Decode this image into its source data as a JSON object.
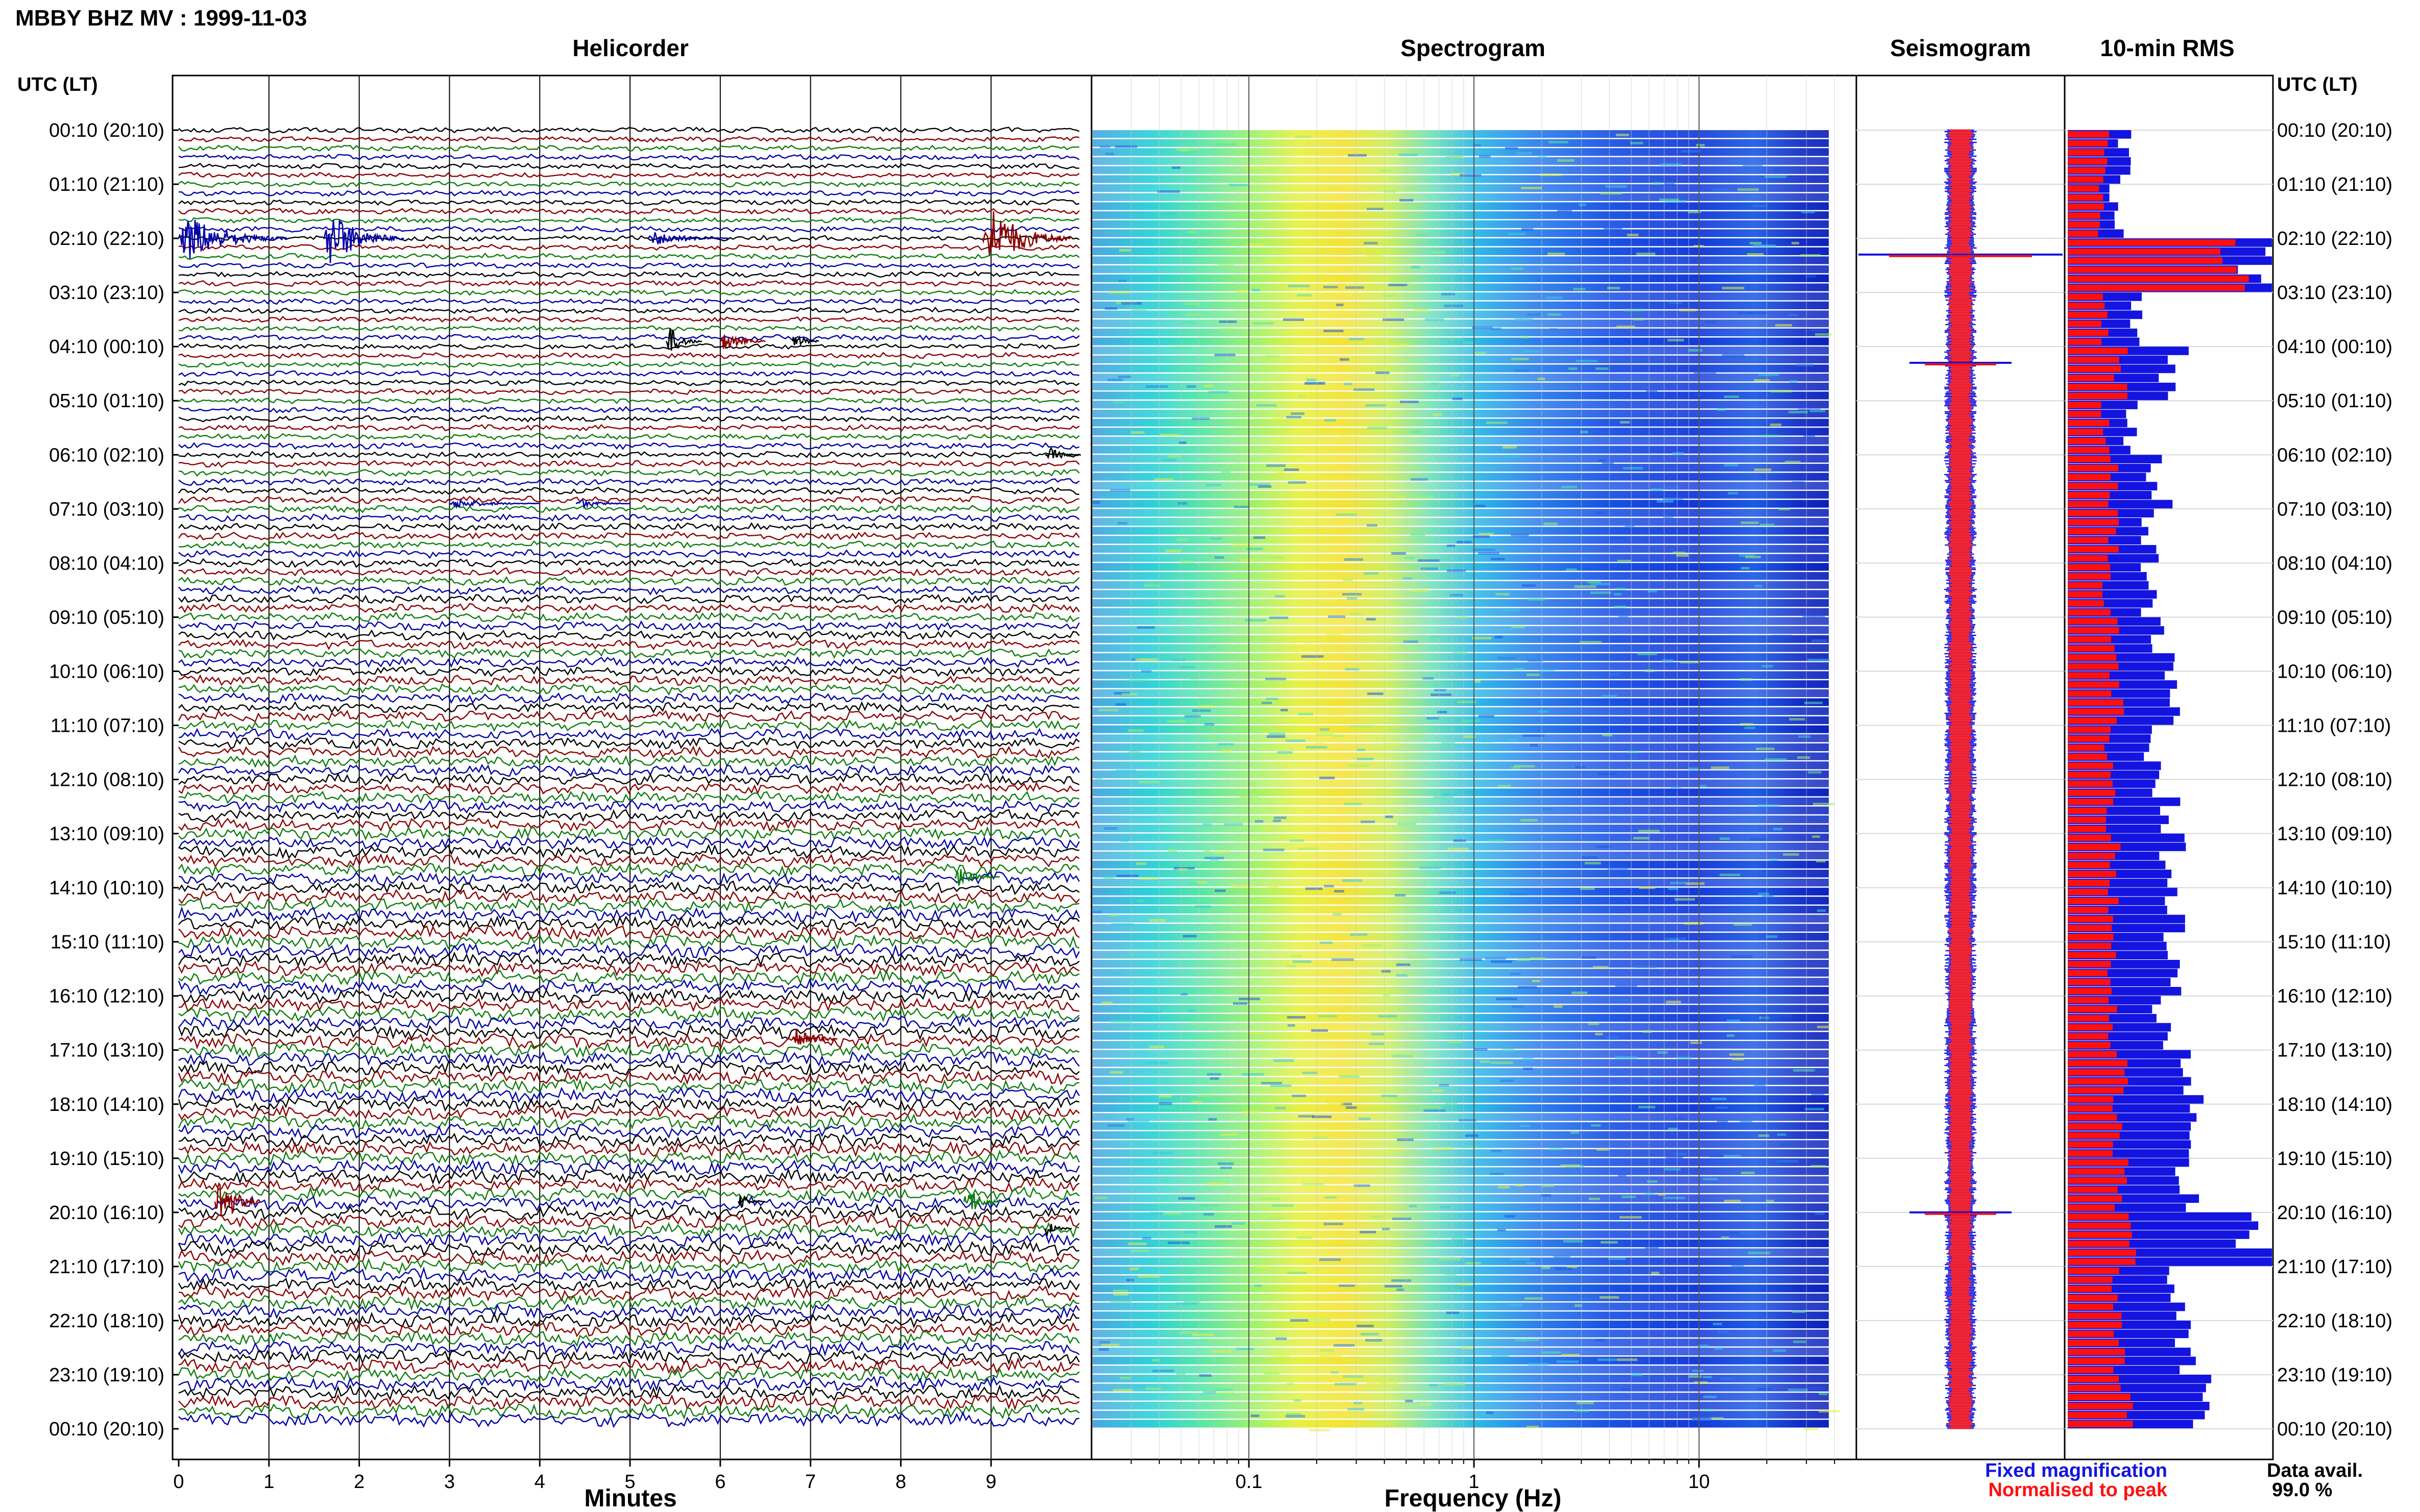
{
  "header": {
    "title": "MBBY BHZ MV : 1999-11-03",
    "tz_left": "UTC (LT)",
    "tz_right": "UTC (LT)"
  },
  "panels": {
    "helicorder": "Helicorder",
    "spectrogram": "Spectrogram",
    "seismogram": "Seismogram",
    "rms": "10-min RMS"
  },
  "axes": {
    "minutes_label": "Minutes",
    "frequency_label": "Frequency (Hz)"
  },
  "legend": {
    "fixed": "Fixed magnification",
    "normalised": "Normalised to peak"
  },
  "availability": {
    "label": "Data avail.",
    "value": "99.0 %"
  },
  "colors": {
    "trace_cycle": [
      "#000000",
      "#8b0000",
      "#0f7d0f",
      "#0000a8"
    ],
    "fixed_magnification": "#1414e0",
    "normalised_to_peak": "#ff1010"
  },
  "chart_data": [
    {
      "type": "line",
      "name": "helicorder",
      "title": "Helicorder",
      "xlabel": "Minutes",
      "xlim": [
        0,
        10
      ],
      "xticks": [
        "0",
        "1",
        "2",
        "3",
        "4",
        "5",
        "6",
        "7",
        "8",
        "9"
      ],
      "ylim": [
        "00:10",
        "00:10"
      ],
      "yticks": [
        "00:10 (20:10)",
        "01:10 (21:10)",
        "02:10 (22:10)",
        "03:10 (23:10)",
        "04:10 (00:10)",
        "05:10 (01:10)",
        "06:10 (02:10)",
        "07:10 (03:10)",
        "08:10 (04:10)",
        "09:10 (05:10)",
        "10:10 (06:10)",
        "11:10 (07:10)",
        "12:10 (08:10)",
        "13:10 (09:10)",
        "14:10 (10:10)",
        "15:10 (11:10)",
        "16:10 (12:10)",
        "17:10 (13:10)",
        "18:10 (14:10)",
        "19:10 (15:10)",
        "20:10 (16:10)",
        "21:10 (17:10)",
        "22:10 (18:10)",
        "23:10 (19:10)",
        "00:10 (20:10)"
      ],
      "grid": true,
      "events": [
        {
          "hour": 2.0,
          "minute": 0.0,
          "duration": 1.2,
          "amplitude": 1.6,
          "color": "#0000a8"
        },
        {
          "hour": 2.0,
          "minute": 1.6,
          "duration": 0.9,
          "amplitude": 2.0,
          "color": "#0000a8"
        },
        {
          "hour": 2.0,
          "minute": 5.2,
          "duration": 0.9,
          "amplitude": 0.5,
          "color": "#0000a8"
        },
        {
          "hour": 2.0,
          "minute": 8.9,
          "duration": 1.0,
          "amplitude": 2.2,
          "color": "#8b0000"
        },
        {
          "hour": 3.9,
          "minute": 5.4,
          "duration": 0.4,
          "amplitude": 1.0,
          "color": "#000000"
        },
        {
          "hour": 3.9,
          "minute": 6.0,
          "duration": 0.5,
          "amplitude": 0.7,
          "color": "#8b0000"
        },
        {
          "hour": 3.9,
          "minute": 6.8,
          "duration": 0.3,
          "amplitude": 0.6,
          "color": "#000000"
        },
        {
          "hour": 6.0,
          "minute": 9.6,
          "duration": 0.4,
          "amplitude": 0.6,
          "color": "#000000"
        },
        {
          "hour": 6.9,
          "minute": 3.0,
          "duration": 1.0,
          "amplitude": 0.3,
          "color": "#0000a8"
        },
        {
          "hour": 6.9,
          "minute": 4.4,
          "duration": 0.6,
          "amplitude": 0.3,
          "color": "#0000a8"
        },
        {
          "hour": 13.8,
          "minute": 8.6,
          "duration": 0.5,
          "amplitude": 0.6,
          "color": "#0f7d0f"
        },
        {
          "hour": 16.8,
          "minute": 6.8,
          "duration": 0.5,
          "amplitude": 1.0,
          "color": "#8b0000"
        },
        {
          "hour": 19.8,
          "minute": 0.4,
          "duration": 0.5,
          "amplitude": 2.0,
          "color": "#8b0000"
        },
        {
          "hour": 19.8,
          "minute": 8.7,
          "duration": 0.4,
          "amplitude": 1.2,
          "color": "#0f7d0f"
        },
        {
          "hour": 19.8,
          "minute": 6.2,
          "duration": 0.3,
          "amplitude": 0.5,
          "color": "#000000"
        },
        {
          "hour": 20.3,
          "minute": 9.6,
          "duration": 0.3,
          "amplitude": 0.5,
          "color": "#000000"
        }
      ]
    },
    {
      "type": "heatmap",
      "name": "spectrogram",
      "title": "Spectrogram",
      "xlabel": "Frequency (Hz)",
      "xscale": "log",
      "xlim": [
        0.02,
        50
      ],
      "xticks": [
        "0.1",
        "1",
        "10"
      ],
      "ylim": [
        "00:10",
        "00:10"
      ],
      "peak_band_hz": [
        0.18,
        0.45
      ],
      "colormap": "jet"
    },
    {
      "type": "line",
      "name": "seismogram",
      "title": "Seismogram",
      "series": [
        {
          "name": "Fixed magnification",
          "color": "#1414e0"
        },
        {
          "name": "Normalised to peak",
          "color": "#ff1010"
        }
      ],
      "spike_hours": [
        2.3,
        4.3,
        20.0
      ]
    },
    {
      "type": "bar",
      "name": "rms",
      "title": "10-min RMS",
      "orientation": "horizontal",
      "hourly_fixed": [
        0.28,
        0.24,
        0.98,
        0.32,
        0.52,
        0.3,
        0.45,
        0.42,
        0.38,
        0.46,
        0.5,
        0.4,
        0.48,
        0.52,
        0.5,
        0.5,
        0.48,
        0.6,
        0.55,
        0.58,
        0.95,
        0.52,
        0.58,
        0.62
      ],
      "hourly_normalised": [
        0.18,
        0.16,
        0.8,
        0.18,
        0.26,
        0.18,
        0.22,
        0.22,
        0.2,
        0.22,
        0.24,
        0.2,
        0.22,
        0.24,
        0.22,
        0.22,
        0.22,
        0.26,
        0.24,
        0.26,
        0.3,
        0.24,
        0.26,
        0.28
      ]
    }
  ]
}
